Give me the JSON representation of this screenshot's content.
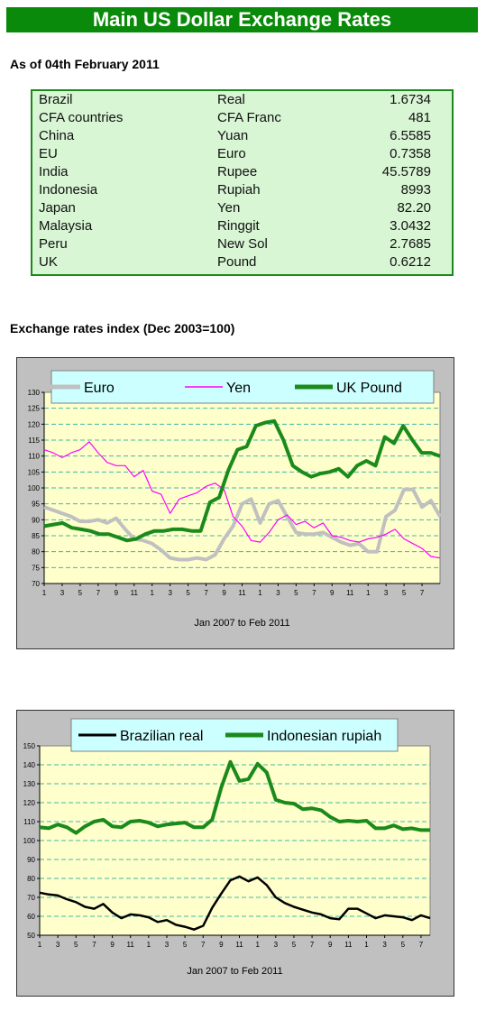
{
  "header": {
    "title": "Main US Dollar Exchange Rates"
  },
  "as_of": "As of 04th February 2011",
  "rates": [
    {
      "country": "Brazil",
      "currency": "Real",
      "rate": "1.6734"
    },
    {
      "country": "CFA countries",
      "currency": "CFA Franc",
      "rate": "481"
    },
    {
      "country": "China",
      "currency": "Yuan",
      "rate": "6.5585"
    },
    {
      "country": "EU",
      "currency": "Euro",
      "rate": "0.7358"
    },
    {
      "country": "India",
      "currency": "Rupee",
      "rate": "45.5789"
    },
    {
      "country": "Indonesia",
      "currency": "Rupiah",
      "rate": "8993"
    },
    {
      "country": "Japan",
      "currency": "Yen",
      "rate": "82.20"
    },
    {
      "country": "Malaysia",
      "currency": "Ringgit",
      "rate": "3.0432"
    },
    {
      "country": "Peru",
      "currency": "New Sol",
      "rate": "2.7685"
    },
    {
      "country": "UK",
      "currency": "Pound",
      "rate": "0.6212"
    }
  ],
  "index_title": "Exchange rates index (Dec 2003=100)",
  "chart_data": [
    {
      "type": "line",
      "xlabel": "Jan 2007 to Feb 2011",
      "ylim": [
        70,
        130
      ],
      "yticks": [
        70,
        75,
        80,
        85,
        90,
        95,
        100,
        105,
        110,
        115,
        120,
        125,
        130
      ],
      "x_tick_labels": [
        "1",
        "3",
        "5",
        "7",
        "9",
        "11",
        "1",
        "3",
        "5",
        "7",
        "9",
        "11",
        "1",
        "3",
        "5",
        "7",
        "9",
        "11",
        "1",
        "3",
        "5",
        "7"
      ],
      "legend_position": "top",
      "grid": true,
      "series": [
        {
          "name": "Euro",
          "color": "#c0c0c0",
          "values": [
            94,
            93,
            92,
            91,
            89.5,
            89.5,
            90,
            89,
            90.5,
            87,
            84,
            83.5,
            82.5,
            80.5,
            78,
            77.5,
            77.5,
            78,
            77.5,
            79,
            84,
            88,
            95,
            96.5,
            89,
            95,
            96,
            91,
            86,
            85.5,
            85.5,
            86,
            84.5,
            83,
            82,
            82.5,
            80,
            80,
            91,
            93,
            99.5,
            99.5,
            94,
            96,
            91
          ]
        },
        {
          "name": "Yen",
          "color": "#ff00ff",
          "values": [
            112,
            111,
            109.5,
            111,
            112,
            114.5,
            111,
            108,
            107,
            107,
            103.5,
            105.5,
            99,
            98,
            92,
            96.5,
            97.5,
            98.5,
            100.5,
            101.5,
            99.5,
            91,
            88,
            83.5,
            83,
            86,
            90,
            91.5,
            88.5,
            89.5,
            87.5,
            89,
            85,
            84.5,
            83.5,
            83,
            84,
            84.5,
            85.5,
            87,
            84,
            82.5,
            81,
            78.5,
            78
          ]
        },
        {
          "name": "UK Pound",
          "color": "#1a8a1a",
          "values": [
            88,
            88.5,
            89,
            87.5,
            87,
            86.5,
            85.5,
            85.5,
            84.5,
            83.5,
            84,
            85.5,
            86.5,
            86.5,
            87,
            87,
            86.5,
            86.5,
            95.5,
            97,
            105.5,
            112,
            113,
            119.5,
            120.5,
            121,
            115,
            107,
            105,
            103.5,
            104.5,
            105,
            106,
            103.5,
            107,
            108.5,
            107,
            116,
            114,
            119.5,
            115,
            111,
            111,
            110
          ]
        }
      ]
    },
    {
      "type": "line",
      "xlabel": "Jan 2007 to Feb 2011",
      "ylim": [
        50,
        150
      ],
      "yticks": [
        50,
        60,
        70,
        80,
        90,
        100,
        110,
        120,
        130,
        140,
        150
      ],
      "x_tick_labels": [
        "1",
        "3",
        "5",
        "7",
        "9",
        "11",
        "1",
        "3",
        "5",
        "7",
        "9",
        "11",
        "1",
        "3",
        "5",
        "7",
        "9",
        "11",
        "1",
        "3",
        "5",
        "7"
      ],
      "legend_position": "top",
      "grid": true,
      "series": [
        {
          "name": "Brazilian real",
          "color": "#000000",
          "values": [
            72.5,
            71.5,
            71,
            69,
            67.5,
            65,
            64,
            66.5,
            62,
            59,
            61,
            60.5,
            59.5,
            57,
            58,
            55.5,
            54.5,
            53,
            55,
            64.5,
            72,
            79,
            81,
            78.5,
            80.5,
            76.5,
            70,
            67,
            65,
            63.5,
            62,
            61,
            59,
            58.5,
            64,
            64,
            61.5,
            59,
            60.5,
            60,
            59.5,
            58,
            60.5,
            59
          ]
        },
        {
          "name": "Indonesian rupiah",
          "color": "#1a8a1a",
          "values": [
            107,
            106.5,
            108.5,
            107,
            104,
            107.5,
            110,
            111,
            107.5,
            107,
            110,
            110.5,
            109.5,
            107.5,
            108.5,
            109,
            109.5,
            107,
            107,
            111,
            128,
            141.5,
            131.5,
            132.5,
            140.5,
            136,
            121.5,
            120,
            119.5,
            116.5,
            117,
            116,
            112.5,
            110,
            110.5,
            110,
            110.5,
            106.5,
            106.5,
            108,
            106,
            106.5,
            105.5,
            105.5
          ]
        }
      ]
    }
  ]
}
